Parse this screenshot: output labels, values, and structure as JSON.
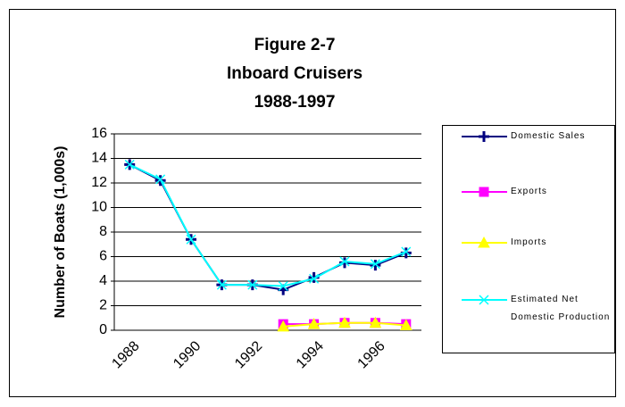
{
  "chart_data": {
    "type": "line",
    "title": "Figure 2-7",
    "subtitle": "Inboard Cruisers",
    "subtitle2": "1988-1997",
    "y_label": "Number of Boats (1,000s)",
    "categories": [
      "1988",
      null,
      "1990",
      null,
      "1992",
      null,
      "1994",
      null,
      "1996",
      null
    ],
    "series": [
      {
        "name": "Domestic Sales",
        "color": "#000080",
        "marker": "plus",
        "values": [
          13.5,
          12.2,
          7.4,
          3.7,
          3.7,
          3.3,
          4.3,
          5.5,
          5.3,
          6.3
        ]
      },
      {
        "name": "Exports",
        "color": "#ff00ff",
        "marker": "square",
        "values": [
          null,
          null,
          null,
          null,
          null,
          0.5,
          0.5,
          0.6,
          0.6,
          0.5
        ]
      },
      {
        "name": "Imports",
        "color": "#ffff00",
        "marker": "triangle",
        "values": [
          null,
          null,
          null,
          null,
          null,
          0.3,
          0.5,
          0.6,
          0.6,
          0.4
        ]
      },
      {
        "name": "Estimated Net Domestic Production",
        "color": "#00ffff",
        "marker": "x",
        "values": [
          13.5,
          12.3,
          7.4,
          3.7,
          3.7,
          3.6,
          4.2,
          5.6,
          5.4,
          6.4
        ]
      }
    ],
    "ylim": [
      0,
      16
    ],
    "yticks": [
      0,
      2,
      4,
      6,
      8,
      10,
      12,
      14,
      16
    ],
    "grid": true,
    "legend": "right"
  }
}
